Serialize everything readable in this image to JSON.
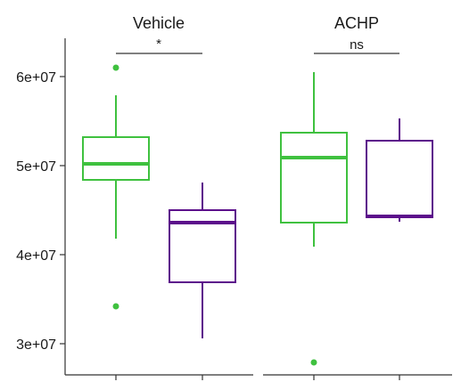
{
  "chart_data": {
    "type": "boxplot",
    "y_axis": {
      "ticks": [
        30000000,
        40000000,
        50000000,
        60000000
      ],
      "tick_labels": [
        "3e+07",
        "4e+07",
        "5e+07",
        "6e+07"
      ],
      "ylim": [
        26500000,
        64300000
      ]
    },
    "x_axis": {
      "tick_labels": []
    },
    "colors": {
      "group1": "#3fc13f",
      "group2": "#5c0f8b"
    },
    "facets": [
      {
        "title": "Vehicle",
        "significance": "*",
        "boxes": [
          {
            "group": "group1",
            "lower_whisker": 41800000,
            "q1": 48400000,
            "median": 50200000,
            "q3": 53200000,
            "upper_whisker": 57900000,
            "outliers": [
              61000000,
              34200000
            ]
          },
          {
            "group": "group2",
            "lower_whisker": 30600000,
            "q1": 36900000,
            "median": 43600000,
            "q3": 45000000,
            "upper_whisker": 48100000,
            "outliers": []
          }
        ]
      },
      {
        "title": "ACHP",
        "significance": "ns",
        "boxes": [
          {
            "group": "group1",
            "lower_whisker": 40900000,
            "q1": 43600000,
            "median": 50900000,
            "q3": 53700000,
            "upper_whisker": 60500000,
            "outliers": [
              27900000
            ]
          },
          {
            "group": "group2",
            "lower_whisker": 43700000,
            "q1": 44200000,
            "median": 44300000,
            "q3": 52800000,
            "upper_whisker": 55300000,
            "outliers": []
          }
        ]
      }
    ]
  }
}
